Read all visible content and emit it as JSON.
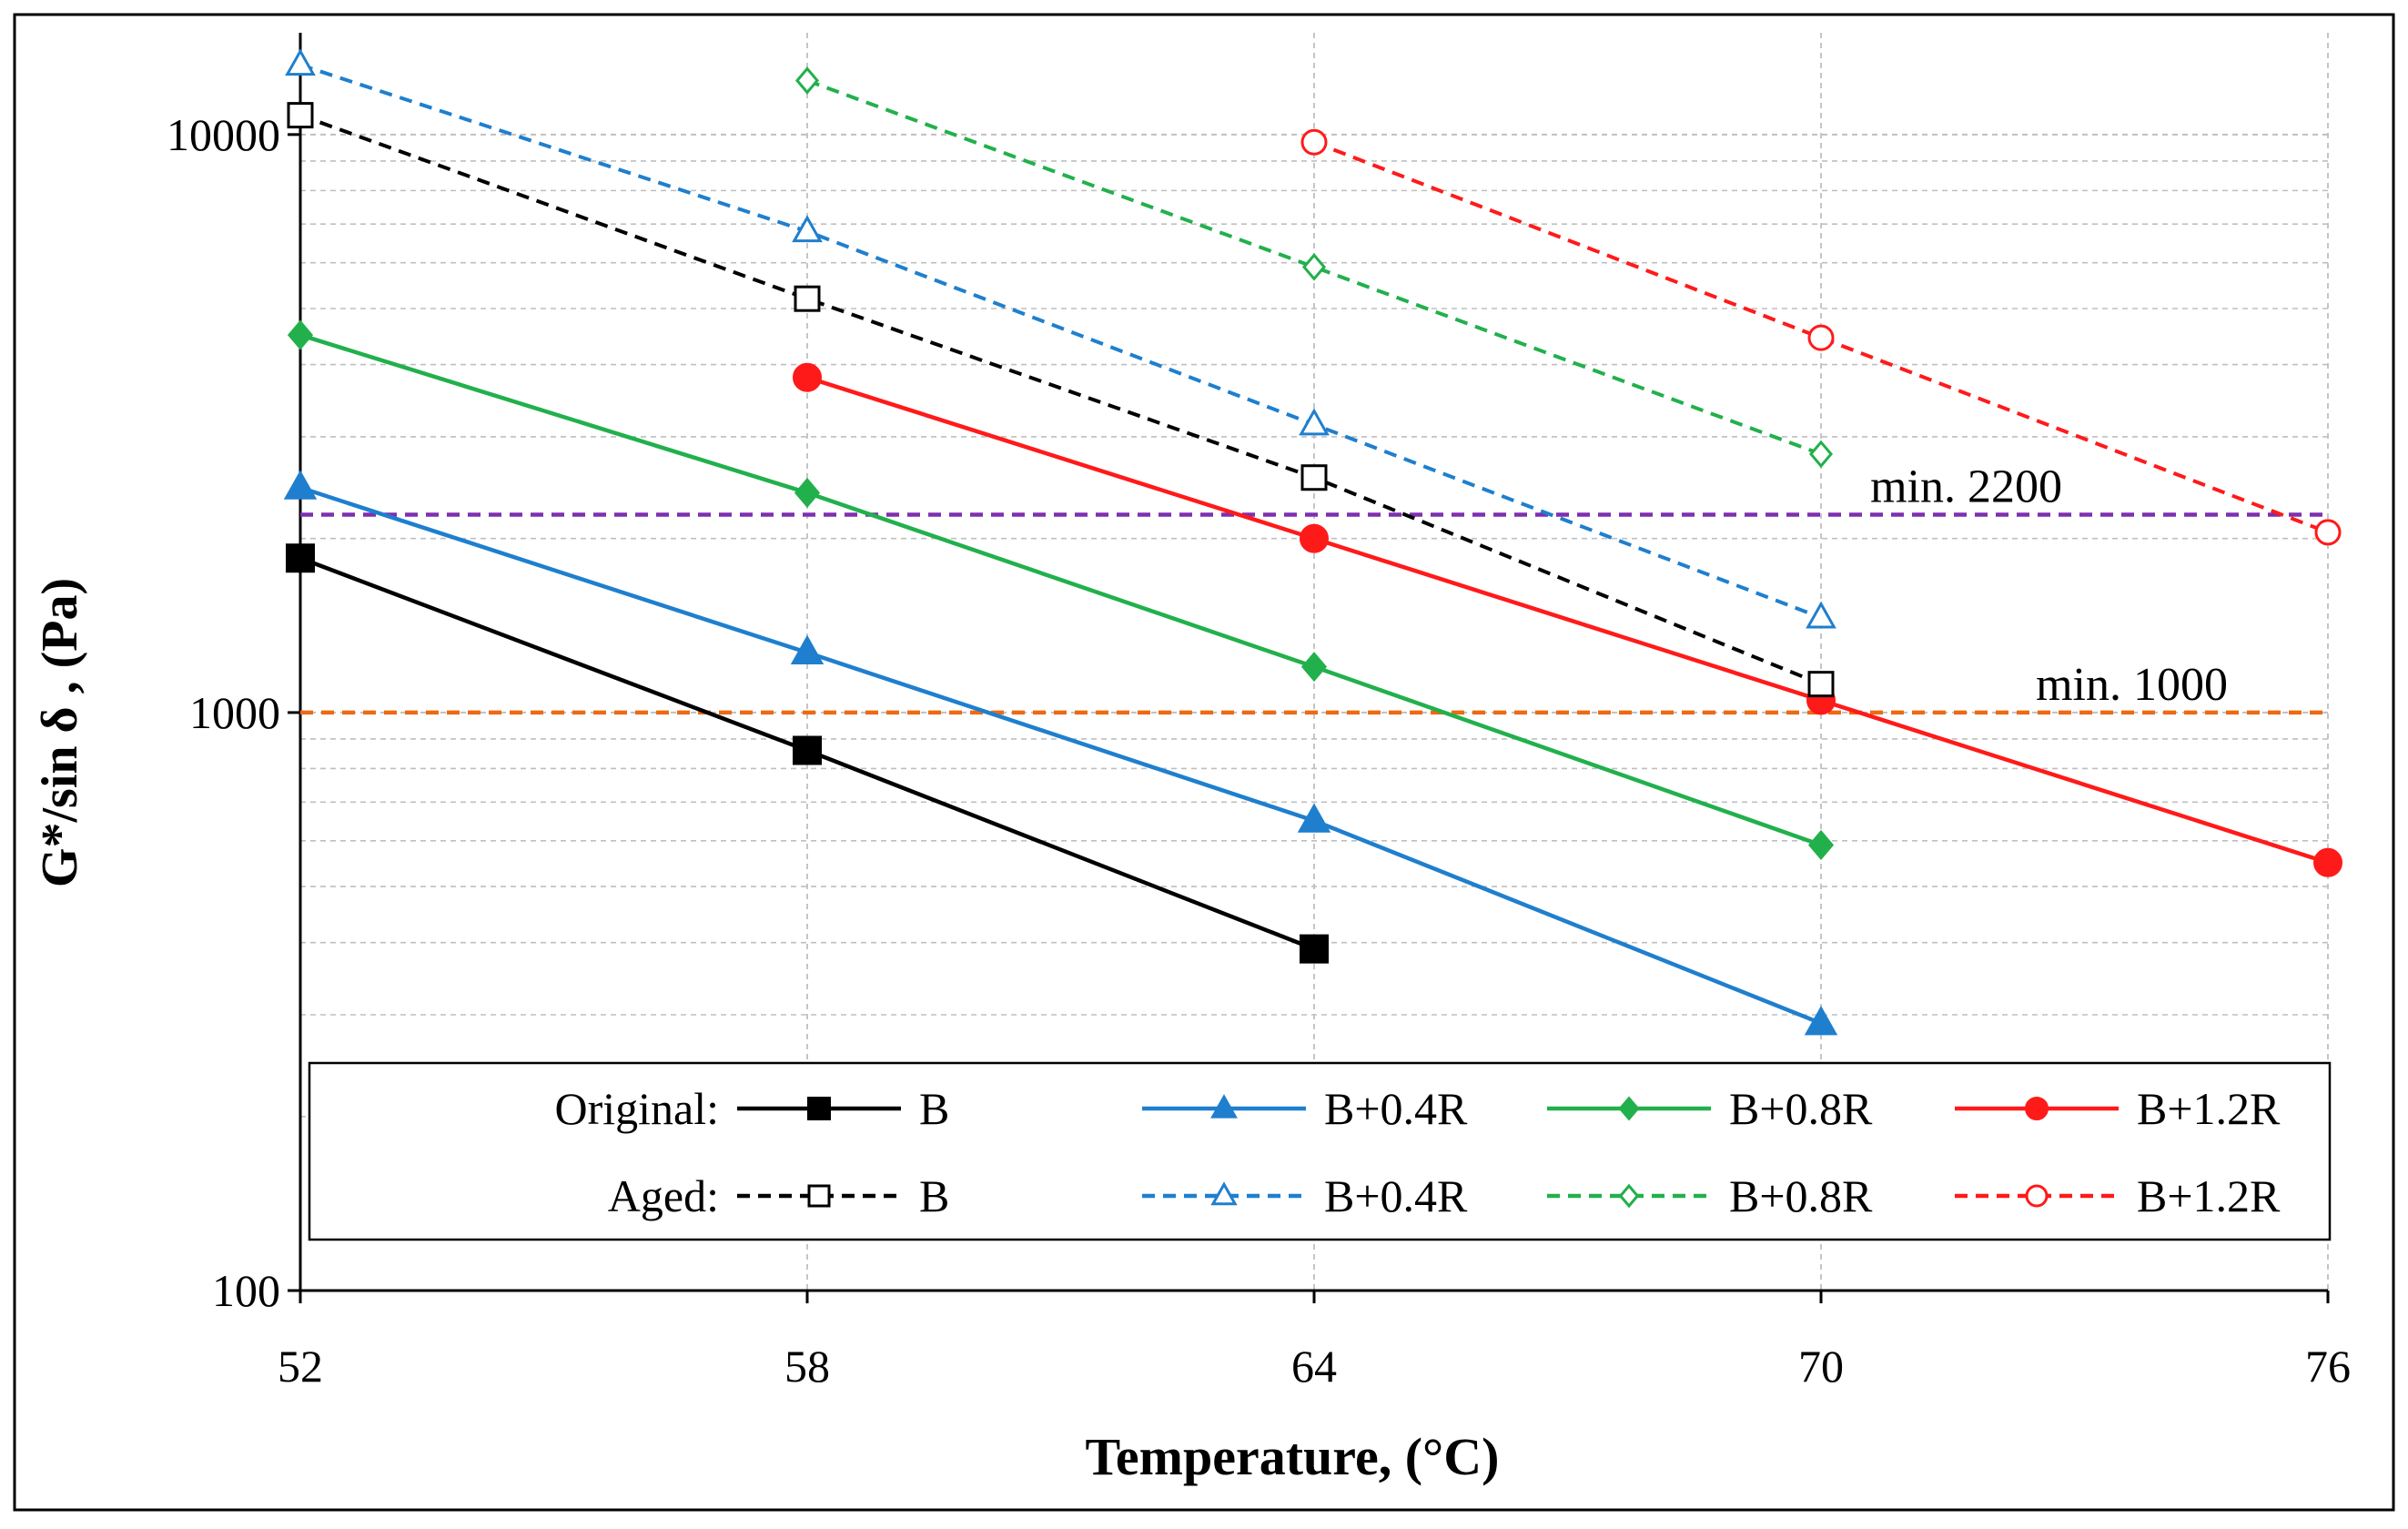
{
  "colors": {
    "B": "#000000",
    "B+0.4R": "#1f7fce",
    "B+0.8R": "#22b04c",
    "B+1.2R": "#ff1a1a",
    "min2200": "#7f2fb0",
    "min1000": "#ee6a12",
    "grid": "#bfbfbf",
    "frame": "#000000"
  },
  "chart_data": {
    "type": "line",
    "xlabel": "Temperature, (°C)",
    "ylabel": "G*/sin δ , (Pa)",
    "yscale": "log",
    "xlim": [
      52,
      76
    ],
    "ylim": [
      100,
      15000
    ],
    "x_ticks": [
      52,
      58,
      64,
      70,
      76
    ],
    "x_tick_labels": [
      "52",
      "58",
      "64",
      "70",
      "76"
    ],
    "y_ticks": [
      100,
      1000,
      10000
    ],
    "y_tick_labels": [
      "100",
      "1000",
      "10000"
    ],
    "grid": "on",
    "series": [
      {
        "name": "B",
        "group": "Original",
        "style": "solid",
        "marker": "square",
        "filled": true,
        "colorKey": "B",
        "x": [
          52,
          58,
          64
        ],
        "y": [
          1850,
          860,
          390
        ]
      },
      {
        "name": "B+0.4R",
        "group": "Original",
        "style": "solid",
        "marker": "triangle",
        "filled": true,
        "colorKey": "B+0.4R",
        "x": [
          52,
          58,
          64,
          70
        ],
        "y": [
          2450,
          1270,
          650,
          290
        ]
      },
      {
        "name": "B+0.8R",
        "group": "Original",
        "style": "solid",
        "marker": "diamond",
        "filled": true,
        "colorKey": "B+0.8R",
        "x": [
          52,
          58,
          64,
          70
        ],
        "y": [
          4500,
          2400,
          1200,
          590
        ]
      },
      {
        "name": "B+1.2R",
        "group": "Original",
        "style": "solid",
        "marker": "circle",
        "filled": true,
        "colorKey": "B+1.2R",
        "x": [
          58,
          64,
          70,
          76
        ],
        "y": [
          3800,
          2000,
          1050,
          550
        ]
      },
      {
        "name": "B",
        "group": "Aged",
        "style": "dashed",
        "marker": "square",
        "filled": false,
        "colorKey": "B",
        "x": [
          52,
          58,
          64,
          70
        ],
        "y": [
          10800,
          5200,
          2550,
          1120
        ]
      },
      {
        "name": "B+0.4R",
        "group": "Aged",
        "style": "dashed",
        "marker": "triangle",
        "filled": false,
        "colorKey": "B+0.4R",
        "x": [
          52,
          58,
          64,
          70
        ],
        "y": [
          13200,
          6800,
          3150,
          1460
        ]
      },
      {
        "name": "B+0.8R",
        "group": "Aged",
        "style": "dashed",
        "marker": "diamond",
        "filled": false,
        "colorKey": "B+0.8R",
        "x": [
          58,
          64,
          70
        ],
        "y": [
          12400,
          5900,
          2800
        ]
      },
      {
        "name": "B+1.2R",
        "group": "Aged",
        "style": "dashed",
        "marker": "circle",
        "filled": false,
        "colorKey": "B+1.2R",
        "x": [
          64,
          70,
          76
        ],
        "y": [
          9700,
          4450,
          2050
        ]
      }
    ],
    "reference_lines": [
      {
        "label": "min. 2200",
        "y": 2200,
        "colorKey": "min2200"
      },
      {
        "label": "min. 1000",
        "y": 1000,
        "colorKey": "min1000"
      }
    ],
    "legend": {
      "placement": "bottom-inside",
      "row_labels": [
        "Original:",
        "Aged:"
      ]
    }
  }
}
